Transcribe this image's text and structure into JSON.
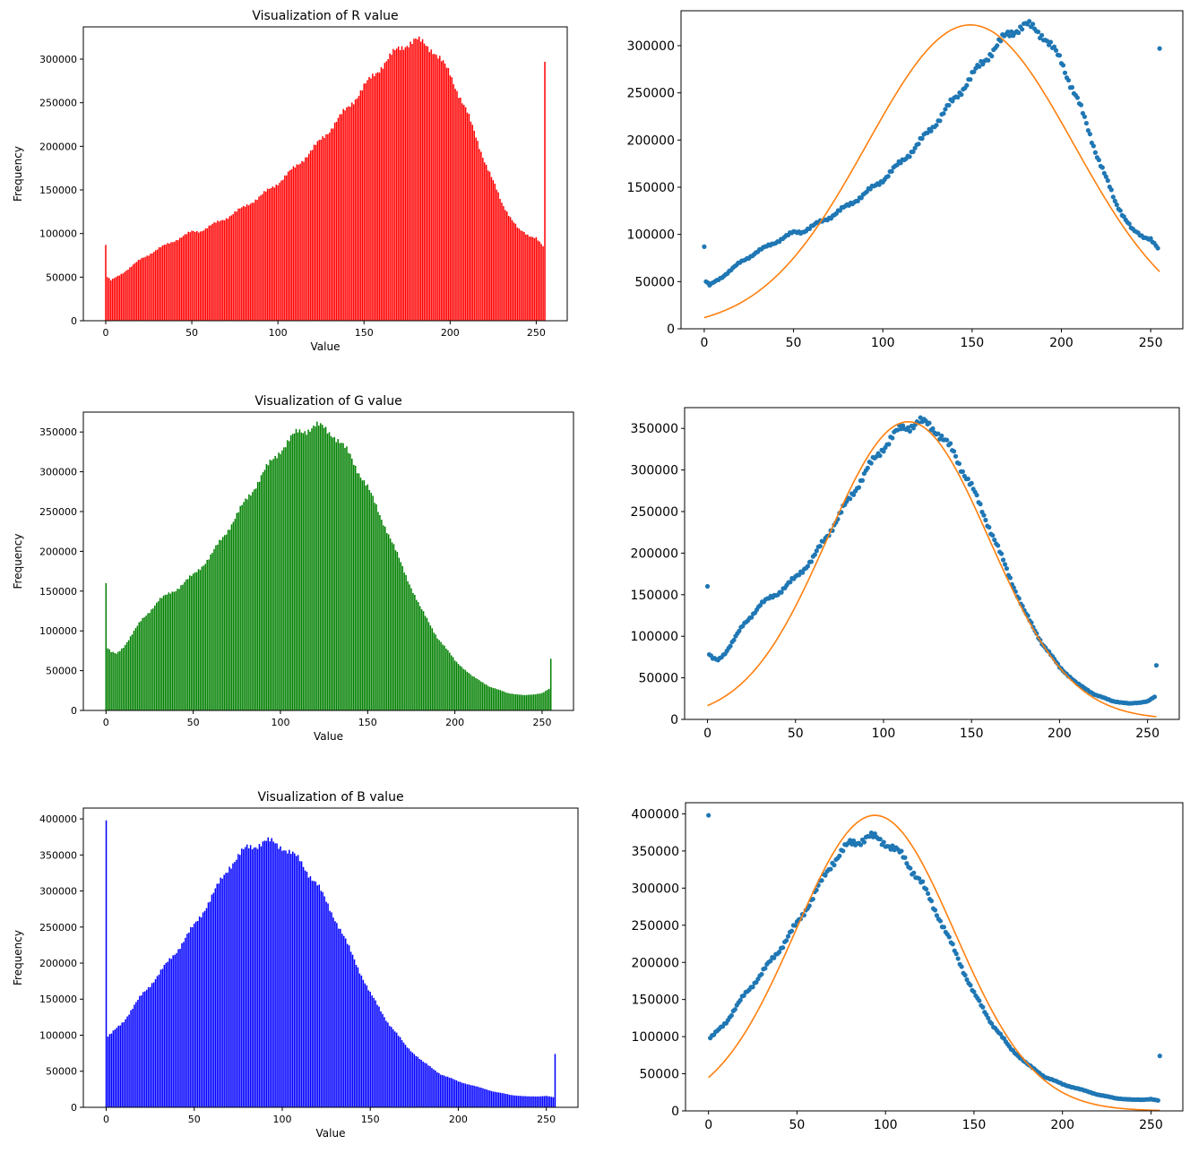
{
  "chart_data": [
    {
      "type": "bar",
      "title": "Visualization of R value",
      "xlabel": "Value",
      "ylabel": "Frequency",
      "xlim": [
        -13,
        268
      ],
      "ylim": [
        0,
        337000
      ],
      "xticks": [
        0,
        50,
        100,
        150,
        200,
        250
      ],
      "yticks": [
        0,
        50000,
        100000,
        150000,
        200000,
        250000,
        300000
      ],
      "color": "#ff0000",
      "profile": {
        "x": [
          0,
          1,
          3,
          10,
          20,
          30,
          40,
          45,
          50,
          55,
          60,
          70,
          80,
          90,
          100,
          110,
          120,
          130,
          140,
          150,
          160,
          170,
          175,
          180,
          185,
          190,
          200,
          210,
          220,
          230,
          240,
          245,
          250,
          254,
          255
        ],
        "y": [
          87000,
          50000,
          46000,
          55000,
          70000,
          82000,
          92000,
          97000,
          102000,
          103000,
          108000,
          118000,
          130000,
          143000,
          158000,
          176000,
          196000,
          219000,
          243000,
          268000,
          292000,
          312000,
          318000,
          321000,
          318000,
          311000,
          283000,
          238000,
          184000,
          135000,
          104000,
          98000,
          96000,
          85000,
          297000
        ]
      }
    },
    {
      "type": "scatter",
      "title": "",
      "xlim": [
        -13,
        268
      ],
      "ylim": [
        0,
        337000
      ],
      "xticks": [
        0,
        50,
        100,
        150,
        200,
        250
      ],
      "yticks": [
        0,
        50000,
        100000,
        150000,
        200000,
        250000,
        300000
      ],
      "series": [
        {
          "kind": "points",
          "color": "#1f77b4",
          "profile": {
            "x": [
              0,
              1,
              3,
              10,
              20,
              30,
              40,
              45,
              50,
              55,
              60,
              70,
              80,
              90,
              100,
              110,
              120,
              130,
              140,
              150,
              160,
              170,
              175,
              180,
              185,
              190,
              200,
              210,
              220,
              230,
              240,
              245,
              250,
              254,
              255
            ],
            "y": [
              87000,
              50000,
              46000,
              55000,
              70000,
              82000,
              92000,
              97000,
              102000,
              103000,
              108000,
              118000,
              130000,
              143000,
              158000,
              176000,
              196000,
              219000,
              243000,
              268000,
              292000,
              312000,
              318000,
              321000,
              318000,
              311000,
              283000,
              238000,
              184000,
              135000,
              104000,
              98000,
              96000,
              85000,
              297000
            ]
          }
        },
        {
          "kind": "gaussian",
          "color": "#ff7f0e",
          "amplitude": 322000,
          "mean": 149,
          "sigma": 58
        }
      ]
    },
    {
      "type": "bar",
      "title": "Visualization of G value",
      "xlabel": "Value",
      "ylabel": "Frequency",
      "xlim": [
        -13,
        268
      ],
      "ylim": [
        0,
        375000
      ],
      "xticks": [
        0,
        50,
        100,
        150,
        200,
        250
      ],
      "yticks": [
        0,
        50000,
        100000,
        150000,
        200000,
        250000,
        300000,
        350000
      ],
      "color": "#008000",
      "profile": {
        "x": [
          0,
          1,
          3,
          6,
          10,
          20,
          30,
          40,
          50,
          60,
          70,
          80,
          90,
          100,
          110,
          120,
          125,
          130,
          140,
          150,
          160,
          170,
          180,
          190,
          200,
          210,
          220,
          230,
          240,
          245,
          250,
          254,
          255
        ],
        "y": [
          160000,
          78000,
          73000,
          71000,
          80000,
          112000,
          138000,
          152000,
          170000,
          194000,
          228000,
          263000,
          298000,
          328000,
          350000,
          357000,
          355000,
          348000,
          320000,
          280000,
          232000,
          180000,
          130000,
          92000,
          63000,
          43000,
          30000,
          22000,
          19000,
          20000,
          22000,
          27000,
          65000
        ]
      }
    },
    {
      "type": "scatter",
      "title": "",
      "xlim": [
        -13,
        268
      ],
      "ylim": [
        0,
        375000
      ],
      "xticks": [
        0,
        50,
        100,
        150,
        200,
        250
      ],
      "yticks": [
        0,
        50000,
        100000,
        150000,
        200000,
        250000,
        300000,
        350000
      ],
      "series": [
        {
          "kind": "points",
          "color": "#1f77b4",
          "profile": {
            "x": [
              0,
              1,
              3,
              6,
              10,
              20,
              30,
              40,
              50,
              60,
              70,
              80,
              90,
              100,
              110,
              120,
              125,
              130,
              140,
              150,
              160,
              170,
              180,
              190,
              200,
              210,
              220,
              230,
              240,
              245,
              250,
              254,
              255
            ],
            "y": [
              160000,
              78000,
              73000,
              71000,
              80000,
              112000,
              138000,
              152000,
              170000,
              194000,
              228000,
              263000,
              298000,
              328000,
              350000,
              357000,
              355000,
              348000,
              320000,
              280000,
              232000,
              180000,
              130000,
              92000,
              63000,
              43000,
              30000,
              22000,
              19000,
              20000,
              22000,
              27000,
              65000
            ]
          }
        },
        {
          "kind": "gaussian",
          "color": "#ff7f0e",
          "amplitude": 358000,
          "mean": 114,
          "sigma": 46
        }
      ]
    },
    {
      "type": "bar",
      "title": "Visualization of B value",
      "xlabel": "Value",
      "ylabel": "Frequency",
      "xlim": [
        -13,
        268
      ],
      "ylim": [
        0,
        415000
      ],
      "xticks": [
        0,
        50,
        100,
        150,
        200,
        250
      ],
      "yticks": [
        0,
        50000,
        100000,
        150000,
        200000,
        250000,
        300000,
        350000,
        400000
      ],
      "color": "#0000ff",
      "profile": {
        "x": [
          0,
          1,
          3,
          10,
          20,
          30,
          40,
          50,
          60,
          70,
          80,
          90,
          95,
          100,
          110,
          120,
          130,
          140,
          150,
          160,
          170,
          180,
          190,
          200,
          210,
          220,
          230,
          240,
          245,
          250,
          254,
          255
        ],
        "y": [
          398000,
          98000,
          102000,
          120000,
          155000,
          185000,
          217000,
          252000,
          292000,
          335000,
          360000,
          368000,
          367000,
          362000,
          342000,
          308000,
          262000,
          210000,
          158000,
          118000,
          86000,
          63000,
          46000,
          36000,
          29000,
          22000,
          17000,
          15000,
          15000,
          16000,
          14000,
          74000
        ]
      }
    },
    {
      "type": "scatter",
      "title": "",
      "xlim": [
        -13,
        268
      ],
      "ylim": [
        0,
        415000
      ],
      "xticks": [
        0,
        50,
        100,
        150,
        200,
        250
      ],
      "yticks": [
        0,
        50000,
        100000,
        150000,
        200000,
        250000,
        300000,
        350000,
        400000
      ],
      "series": [
        {
          "kind": "points",
          "color": "#1f77b4",
          "profile": {
            "x": [
              0,
              1,
              3,
              10,
              20,
              30,
              40,
              50,
              60,
              70,
              80,
              90,
              95,
              100,
              110,
              120,
              130,
              140,
              150,
              160,
              170,
              180,
              190,
              200,
              210,
              220,
              230,
              240,
              245,
              250,
              254,
              255
            ],
            "y": [
              398000,
              98000,
              102000,
              120000,
              155000,
              185000,
              217000,
              252000,
              292000,
              335000,
              360000,
              368000,
              367000,
              362000,
              342000,
              308000,
              262000,
              210000,
              158000,
              118000,
              86000,
              63000,
              46000,
              36000,
              29000,
              22000,
              17000,
              15000,
              15000,
              16000,
              14000,
              74000
            ]
          }
        },
        {
          "kind": "gaussian",
          "color": "#ff7f0e",
          "amplitude": 398000,
          "mean": 94,
          "sigma": 45
        }
      ]
    }
  ]
}
